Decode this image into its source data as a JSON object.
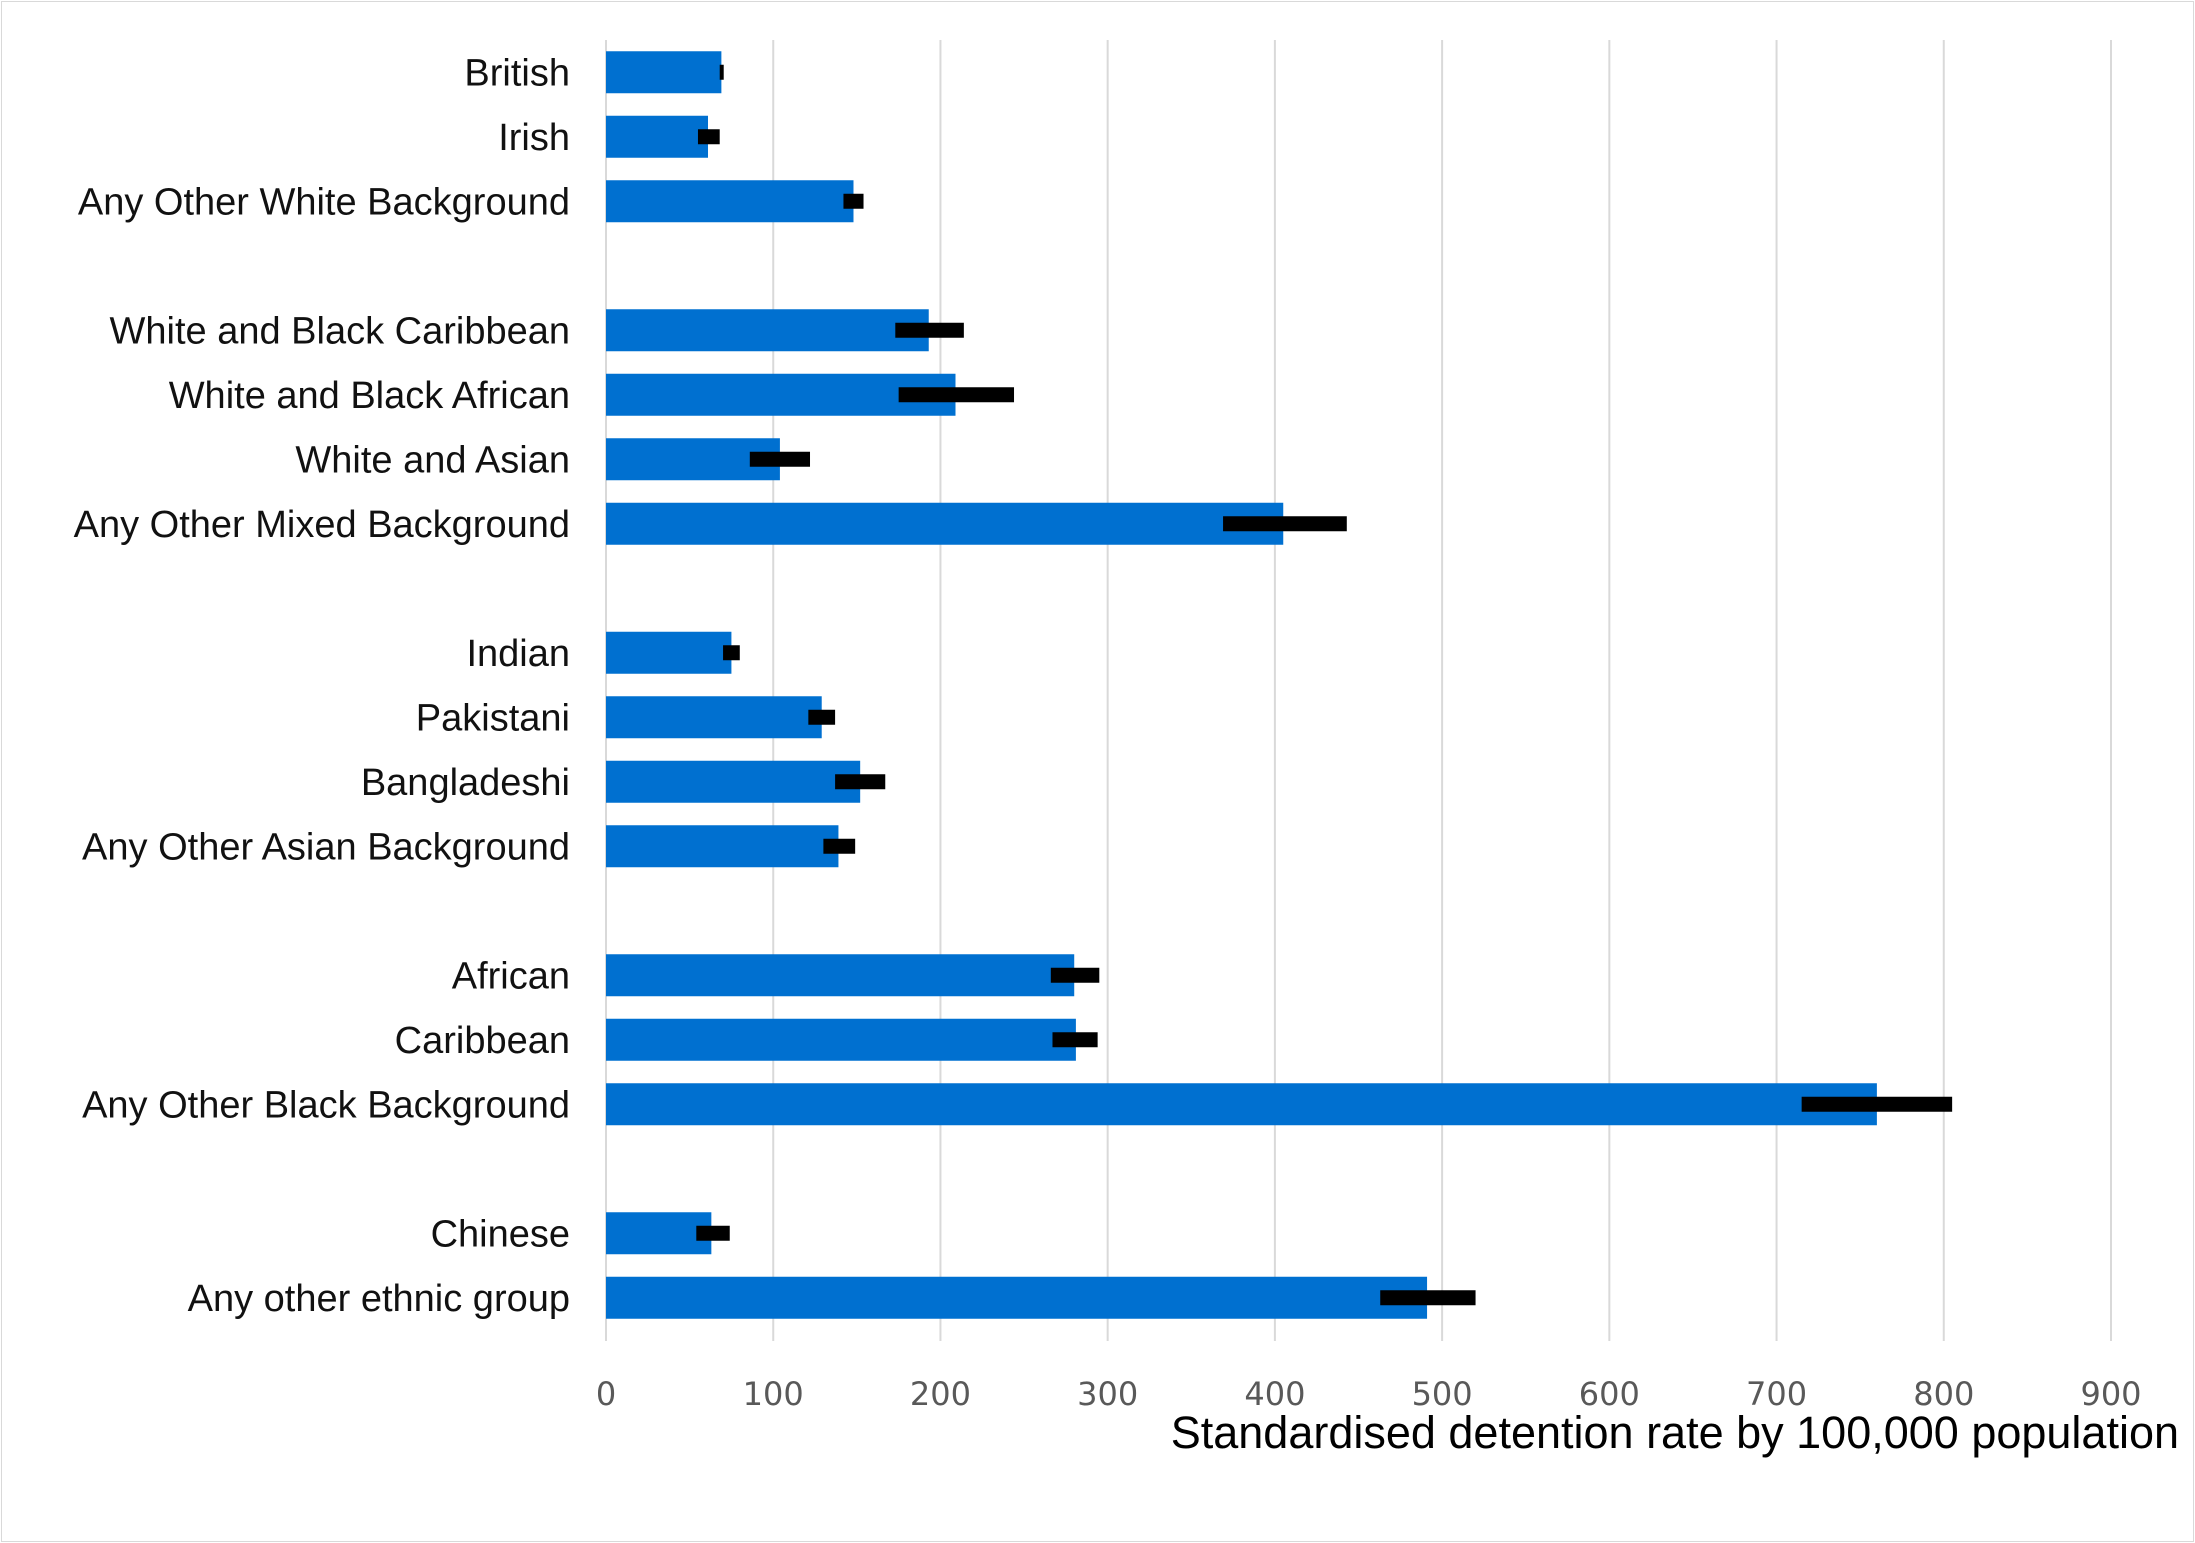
{
  "chart_data": {
    "type": "bar",
    "orientation": "horizontal",
    "title": "",
    "xlabel": "Standardised detention rate by 100,000 population",
    "ylabel": "",
    "xlim": [
      0,
      900
    ],
    "xticks": [
      0,
      100,
      200,
      300,
      400,
      500,
      600,
      700,
      800,
      900
    ],
    "tick_labels": [
      "0",
      "100",
      "200",
      "300",
      "400",
      "500",
      "600",
      "700",
      "800",
      "900"
    ],
    "grid": "vertical",
    "legend": "none",
    "bar_color": "#0070d0",
    "errorbar_color": "#000000",
    "categories": [
      "British",
      "Irish",
      "Any Other White Background",
      "",
      "White and Black Caribbean",
      "White and Black African",
      "White and Asian",
      "Any Other Mixed Background",
      "",
      "Indian",
      "Pakistani",
      "Bangladeshi",
      "Any Other Asian Background",
      "",
      "African",
      "Caribbean",
      "Any Other Black Background",
      "",
      "Chinese",
      "Any other ethnic group"
    ],
    "values": [
      69,
      61,
      148,
      null,
      193,
      209,
      104,
      405,
      null,
      75,
      129,
      152,
      139,
      null,
      280,
      281,
      760,
      null,
      63,
      491
    ],
    "ci_low": [
      68,
      55,
      142,
      null,
      173,
      175,
      86,
      369,
      null,
      70,
      121,
      137,
      130,
      null,
      266,
      267,
      715,
      null,
      54,
      463
    ],
    "ci_high": [
      70,
      68,
      154,
      null,
      214,
      244,
      122,
      443,
      null,
      80,
      137,
      167,
      149,
      null,
      295,
      294,
      805,
      null,
      74,
      520
    ]
  }
}
